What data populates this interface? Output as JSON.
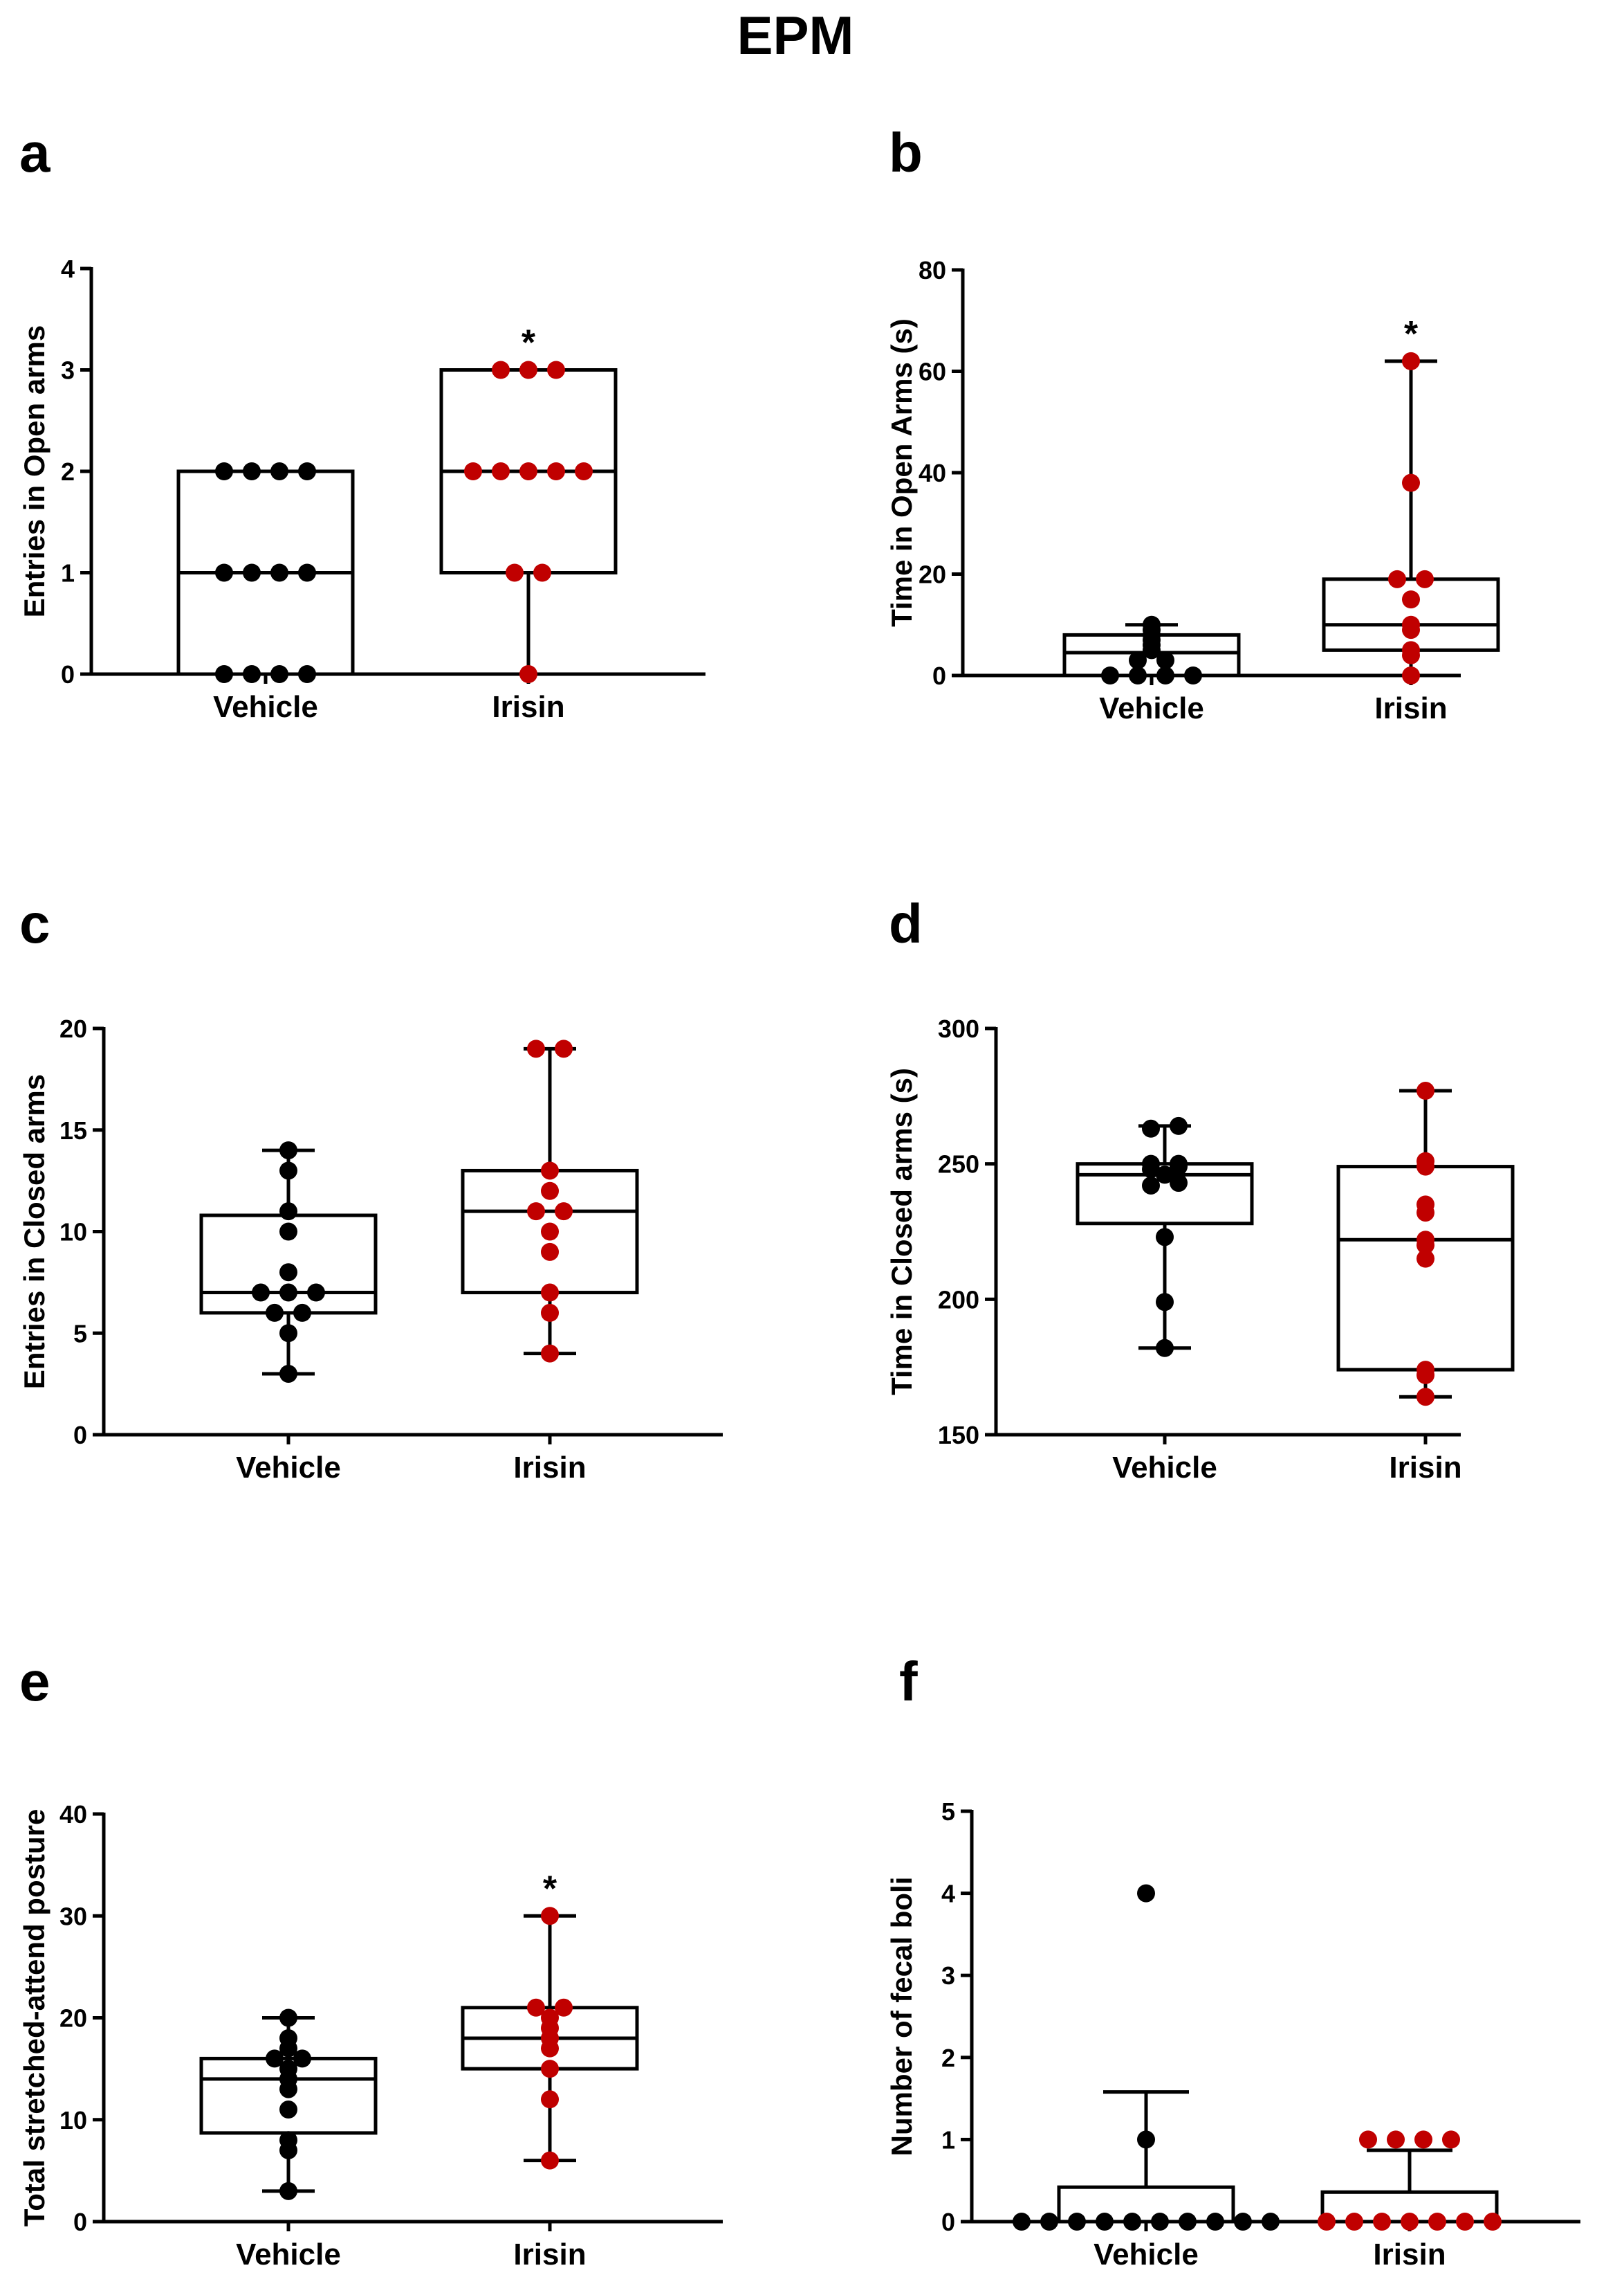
{
  "figure": {
    "title": "EPM"
  },
  "colors": {
    "vehicle": "#000000",
    "irisin": "#c00000"
  },
  "chart_data": [
    {
      "panel": "a",
      "type": "box",
      "ylabel": "Entries in Open arms",
      "ylim": [
        0,
        4
      ],
      "yticks": [
        0,
        1,
        2,
        3,
        4
      ],
      "categories": [
        "Vehicle",
        "Irisin"
      ],
      "series": [
        {
          "category": "Vehicle",
          "whisker_low": 0,
          "q1": 0,
          "median": 1,
          "q3": 2,
          "whisker_high": 2,
          "points": [
            0,
            0,
            0,
            0,
            1,
            1,
            1,
            1,
            2,
            2,
            2,
            2
          ]
        },
        {
          "category": "Irisin",
          "whisker_low": 0,
          "q1": 1,
          "median": 2,
          "q3": 3,
          "whisker_high": 3,
          "points": [
            0,
            1,
            1,
            2,
            2,
            2,
            2,
            2,
            3,
            3,
            3
          ]
        }
      ],
      "significance": {
        "category": "Irisin",
        "mark": "*"
      }
    },
    {
      "panel": "b",
      "type": "box",
      "ylabel": "Time in Open Arms (s)",
      "ylim": [
        0,
        80
      ],
      "yticks": [
        0,
        20,
        40,
        60,
        80
      ],
      "categories": [
        "Vehicle",
        "Irisin"
      ],
      "series": [
        {
          "category": "Vehicle",
          "whisker_low": 0,
          "q1": 0,
          "median": 4.5,
          "q3": 8,
          "whisker_high": 10,
          "points": [
            0,
            0,
            0,
            0,
            3,
            3,
            5,
            6,
            7,
            8,
            9,
            10
          ]
        },
        {
          "category": "Irisin",
          "whisker_low": 0,
          "q1": 5,
          "median": 10,
          "q3": 19,
          "whisker_high": 62,
          "points": [
            0,
            4,
            5,
            9,
            10,
            15,
            19,
            19,
            38,
            62
          ]
        }
      ],
      "significance": {
        "category": "Irisin",
        "mark": "*"
      }
    },
    {
      "panel": "c",
      "type": "box",
      "ylabel": "Entries in Closed arms",
      "ylim": [
        0,
        20
      ],
      "yticks": [
        0,
        5,
        10,
        15,
        20
      ],
      "categories": [
        "Vehicle",
        "Irisin"
      ],
      "series": [
        {
          "category": "Vehicle",
          "whisker_low": 3,
          "q1": 6,
          "median": 7,
          "q3": 10.8,
          "whisker_high": 14,
          "points": [
            3,
            5,
            6,
            6,
            7,
            7,
            7,
            8,
            10,
            11,
            13,
            14
          ]
        },
        {
          "category": "Irisin",
          "whisker_low": 4,
          "q1": 7,
          "median": 11,
          "q3": 13,
          "whisker_high": 19,
          "points": [
            4,
            6,
            7,
            9,
            10,
            11,
            11,
            12,
            13,
            19,
            19
          ]
        }
      ]
    },
    {
      "panel": "d",
      "type": "box",
      "ylabel": "Time in Closed arms (s)",
      "ylim": [
        150,
        300
      ],
      "yticks": [
        150,
        200,
        250,
        300
      ],
      "categories": [
        "Vehicle",
        "Irisin"
      ],
      "series": [
        {
          "category": "Vehicle",
          "whisker_low": 182,
          "q1": 228,
          "median": 246,
          "q3": 250,
          "whisker_high": 264,
          "points": [
            182,
            199,
            223,
            242,
            243,
            246,
            248,
            249,
            250,
            250,
            263,
            264
          ]
        },
        {
          "category": "Irisin",
          "whisker_low": 164,
          "q1": 174,
          "median": 222,
          "q3": 249,
          "whisker_high": 277,
          "points": [
            164,
            172,
            174,
            215,
            220,
            222,
            232,
            235,
            249,
            251,
            277
          ]
        }
      ]
    },
    {
      "panel": "e",
      "type": "box",
      "ylabel": "Total stretched-attend posture",
      "ylim": [
        0,
        40
      ],
      "yticks": [
        0,
        10,
        20,
        30,
        40
      ],
      "categories": [
        "Vehicle",
        "Irisin"
      ],
      "series": [
        {
          "category": "Vehicle",
          "whisker_low": 3,
          "q1": 8.7,
          "median": 14,
          "q3": 16,
          "whisker_high": 20,
          "points": [
            3,
            7,
            8,
            11,
            13,
            14,
            15,
            16,
            16,
            17,
            18,
            20
          ]
        },
        {
          "category": "Irisin",
          "whisker_low": 6,
          "q1": 15,
          "median": 18,
          "q3": 21,
          "whisker_high": 30,
          "points": [
            6,
            12,
            15,
            17,
            18,
            19,
            20,
            21,
            21,
            30
          ]
        }
      ],
      "significance": {
        "category": "Irisin",
        "mark": "*"
      }
    },
    {
      "panel": "f",
      "type": "bar",
      "ylabel": "Number of fecal boli",
      "ylim": [
        0,
        5
      ],
      "yticks": [
        0,
        1,
        2,
        3,
        4,
        5
      ],
      "categories": [
        "Vehicle",
        "Irisin"
      ],
      "series": [
        {
          "category": "Vehicle",
          "mean": 0.42,
          "error_high": 1.58,
          "points": [
            0,
            0,
            0,
            0,
            0,
            0,
            0,
            0,
            0,
            0,
            1,
            4
          ]
        },
        {
          "category": "Irisin",
          "mean": 0.36,
          "error_high": 0.87,
          "points": [
            0,
            0,
            0,
            0,
            0,
            0,
            0,
            1,
            1,
            1,
            1
          ]
        }
      ]
    }
  ]
}
